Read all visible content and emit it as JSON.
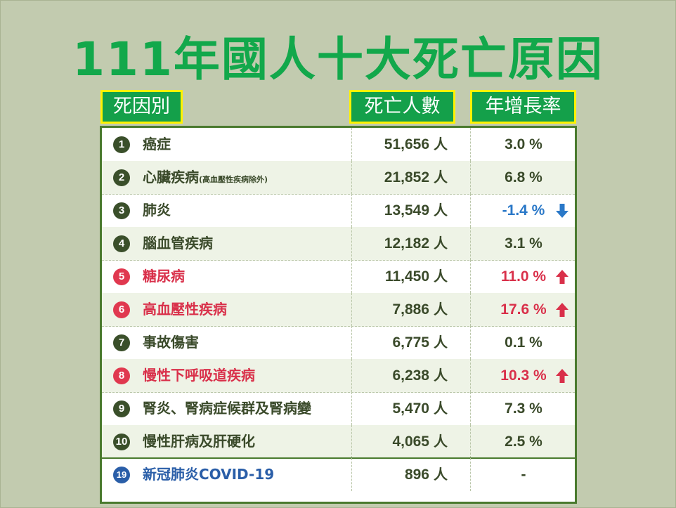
{
  "title": "111年國人十大死亡原因",
  "headers": {
    "cause": "死因別",
    "deaths": "死亡人數",
    "growth": "年增長率"
  },
  "unit": "人",
  "rows": [
    {
      "rank": "1",
      "cause": "癌症",
      "note": "",
      "deaths": "51,656",
      "rate": "3.0 %",
      "trend": "",
      "color": "normal"
    },
    {
      "rank": "2",
      "cause": "心臟疾病",
      "note": "(高血壓性疾病除外)",
      "deaths": "21,852",
      "rate": "6.8 %",
      "trend": "",
      "color": "normal"
    },
    {
      "rank": "3",
      "cause": "肺炎",
      "note": "",
      "deaths": "13,549",
      "rate": "-1.4 %",
      "trend": "down",
      "color": "blue"
    },
    {
      "rank": "4",
      "cause": "腦血管疾病",
      "note": "",
      "deaths": "12,182",
      "rate": "3.1 %",
      "trend": "",
      "color": "normal"
    },
    {
      "rank": "5",
      "cause": "糖尿病",
      "note": "",
      "deaths": "11,450",
      "rate": "11.0 %",
      "trend": "up",
      "color": "red"
    },
    {
      "rank": "6",
      "cause": "高血壓性疾病",
      "note": "",
      "deaths": "7,886",
      "rate": "17.6 %",
      "trend": "up",
      "color": "red"
    },
    {
      "rank": "7",
      "cause": "事故傷害",
      "note": "",
      "deaths": "6,775",
      "rate": "0.1 %",
      "trend": "",
      "color": "normal"
    },
    {
      "rank": "8",
      "cause": "慢性下呼吸道疾病",
      "note": "",
      "deaths": "6,238",
      "rate": "10.3 %",
      "trend": "up",
      "color": "red"
    },
    {
      "rank": "9",
      "cause": "腎炎、腎病症候群及腎病變",
      "note": "",
      "deaths": "5,470",
      "rate": "7.3 %",
      "trend": "",
      "color": "normal"
    },
    {
      "rank": "10",
      "cause": "慢性肝病及肝硬化",
      "note": "",
      "deaths": "4,065",
      "rate": "2.5 %",
      "trend": "",
      "color": "normal"
    },
    {
      "rank": "19",
      "cause": "新冠肺炎COVID-19",
      "note": "",
      "deaths": "896",
      "rate": "-",
      "trend": "",
      "color": "blueTitle"
    }
  ],
  "colors": {
    "title_green": "#12a84b",
    "header_bg": "#14a04a",
    "header_border": "#fff200",
    "increase_red": "#d9304a",
    "decrease_blue": "#2a78c8",
    "covid_blue": "#2a5ea8"
  }
}
